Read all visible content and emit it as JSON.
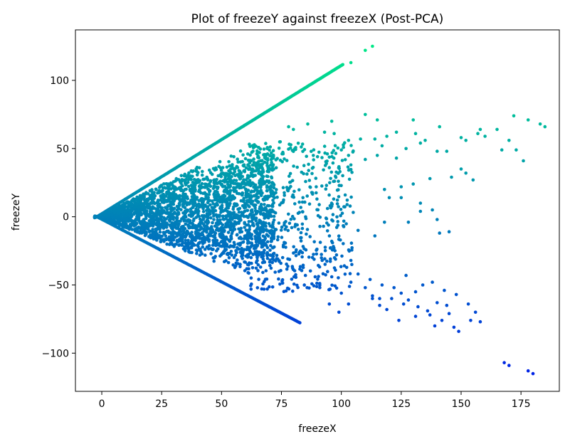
{
  "chart_data": {
    "type": "scatter",
    "title": "Plot of freezeY against freezeX (Post-PCA)",
    "xlabel": "freezeX",
    "ylabel": "freezeY",
    "xlim": [
      -11,
      191
    ],
    "ylim": [
      -128,
      137
    ],
    "xticks": [
      0,
      25,
      50,
      75,
      100,
      125,
      150,
      175
    ],
    "yticks": [
      -100,
      -50,
      0,
      50,
      100
    ],
    "xtick_labels": [
      "0",
      "25",
      "50",
      "75",
      "100",
      "125",
      "150",
      "175"
    ],
    "ytick_labels": [
      "−100",
      "−50",
      "0",
      "50",
      "100"
    ],
    "grid": false,
    "colormap": {
      "low_color": "#0022e6",
      "high_color": "#00e887",
      "value_min": -116,
      "value_max": 125
    },
    "structure": {
      "upper_edge": {
        "x_start": -2,
        "x_end": 101,
        "y_start": 0,
        "y_end": 112
      },
      "lower_edge": {
        "x_start": -2,
        "x_end": 83,
        "y_start": 0,
        "y_end": -78
      },
      "dense_core": {
        "x_range": [
          -3,
          72
        ],
        "y_range": [
          -42,
          55
        ]
      }
    },
    "points": [
      [
        104,
        113
      ],
      [
        110,
        122
      ],
      [
        113,
        125
      ],
      [
        110,
        75
      ],
      [
        115,
        71
      ],
      [
        130,
        71
      ],
      [
        96,
        70
      ],
      [
        78,
        66
      ],
      [
        80,
        64
      ],
      [
        86,
        68
      ],
      [
        93,
        62
      ],
      [
        97,
        61
      ],
      [
        103,
        56
      ],
      [
        108,
        57
      ],
      [
        114,
        57
      ],
      [
        119,
        59
      ],
      [
        123,
        62
      ],
      [
        131,
        61
      ],
      [
        141,
        66
      ],
      [
        150,
        58
      ],
      [
        152,
        56
      ],
      [
        158,
        64
      ],
      [
        165,
        64
      ],
      [
        172,
        74
      ],
      [
        178,
        71
      ],
      [
        183,
        68
      ],
      [
        185,
        66
      ],
      [
        170,
        56
      ],
      [
        167,
        49
      ],
      [
        173,
        49
      ],
      [
        176,
        41
      ],
      [
        160,
        59
      ],
      [
        157,
        61
      ],
      [
        144,
        48
      ],
      [
        140,
        48
      ],
      [
        152,
        32
      ],
      [
        150,
        35
      ],
      [
        146,
        29
      ],
      [
        155,
        27
      ],
      [
        137,
        28
      ],
      [
        130,
        24
      ],
      [
        125,
        22
      ],
      [
        118,
        20
      ],
      [
        120,
        14
      ],
      [
        125,
        14
      ],
      [
        133,
        10
      ],
      [
        138,
        5
      ],
      [
        133,
        4
      ],
      [
        128,
        -4
      ],
      [
        140,
        -2
      ],
      [
        141,
        -12
      ],
      [
        145,
        -11
      ],
      [
        110,
        42
      ],
      [
        115,
        45
      ],
      [
        103,
        45
      ],
      [
        123,
        43
      ],
      [
        127,
        50
      ],
      [
        133,
        54
      ],
      [
        135,
        56
      ],
      [
        117,
        52
      ],
      [
        100,
        49
      ],
      [
        104,
        38
      ],
      [
        95,
        36
      ],
      [
        118,
        -4
      ],
      [
        114,
        -14
      ],
      [
        107,
        -10
      ],
      [
        96,
        -18
      ],
      [
        98,
        -28
      ],
      [
        92,
        -32
      ],
      [
        104,
        -32
      ],
      [
        85,
        -43
      ],
      [
        96,
        -44
      ],
      [
        104,
        -48
      ],
      [
        110,
        -52
      ],
      [
        100,
        -56
      ],
      [
        91,
        -52
      ],
      [
        117,
        -50
      ],
      [
        122,
        -52
      ],
      [
        125,
        -56
      ],
      [
        128,
        -61
      ],
      [
        132,
        -66
      ],
      [
        136,
        -69
      ],
      [
        140,
        -63
      ],
      [
        144,
        -65
      ],
      [
        145,
        -71
      ],
      [
        142,
        -76
      ],
      [
        137,
        -72
      ],
      [
        131,
        -73
      ],
      [
        126,
        -64
      ],
      [
        121,
        -60
      ],
      [
        116,
        -60
      ],
      [
        113,
        -58
      ],
      [
        119,
        -68
      ],
      [
        124,
        -76
      ],
      [
        149,
        -84
      ],
      [
        139,
        -80
      ],
      [
        147,
        -81
      ],
      [
        116,
        -65
      ],
      [
        113,
        -60
      ],
      [
        127,
        -43
      ],
      [
        131,
        -55
      ],
      [
        134,
        -50
      ],
      [
        138,
        -48
      ],
      [
        143,
        -54
      ],
      [
        148,
        -57
      ],
      [
        153,
        -64
      ],
      [
        156,
        -70
      ],
      [
        158,
        -77
      ],
      [
        154,
        -76
      ],
      [
        168,
        -107
      ],
      [
        170,
        -109
      ],
      [
        178,
        -113
      ],
      [
        180,
        -115
      ],
      [
        107,
        -42
      ],
      [
        112,
        -46
      ],
      [
        103,
        -64
      ],
      [
        99,
        -70
      ],
      [
        95,
        -64
      ]
    ]
  }
}
